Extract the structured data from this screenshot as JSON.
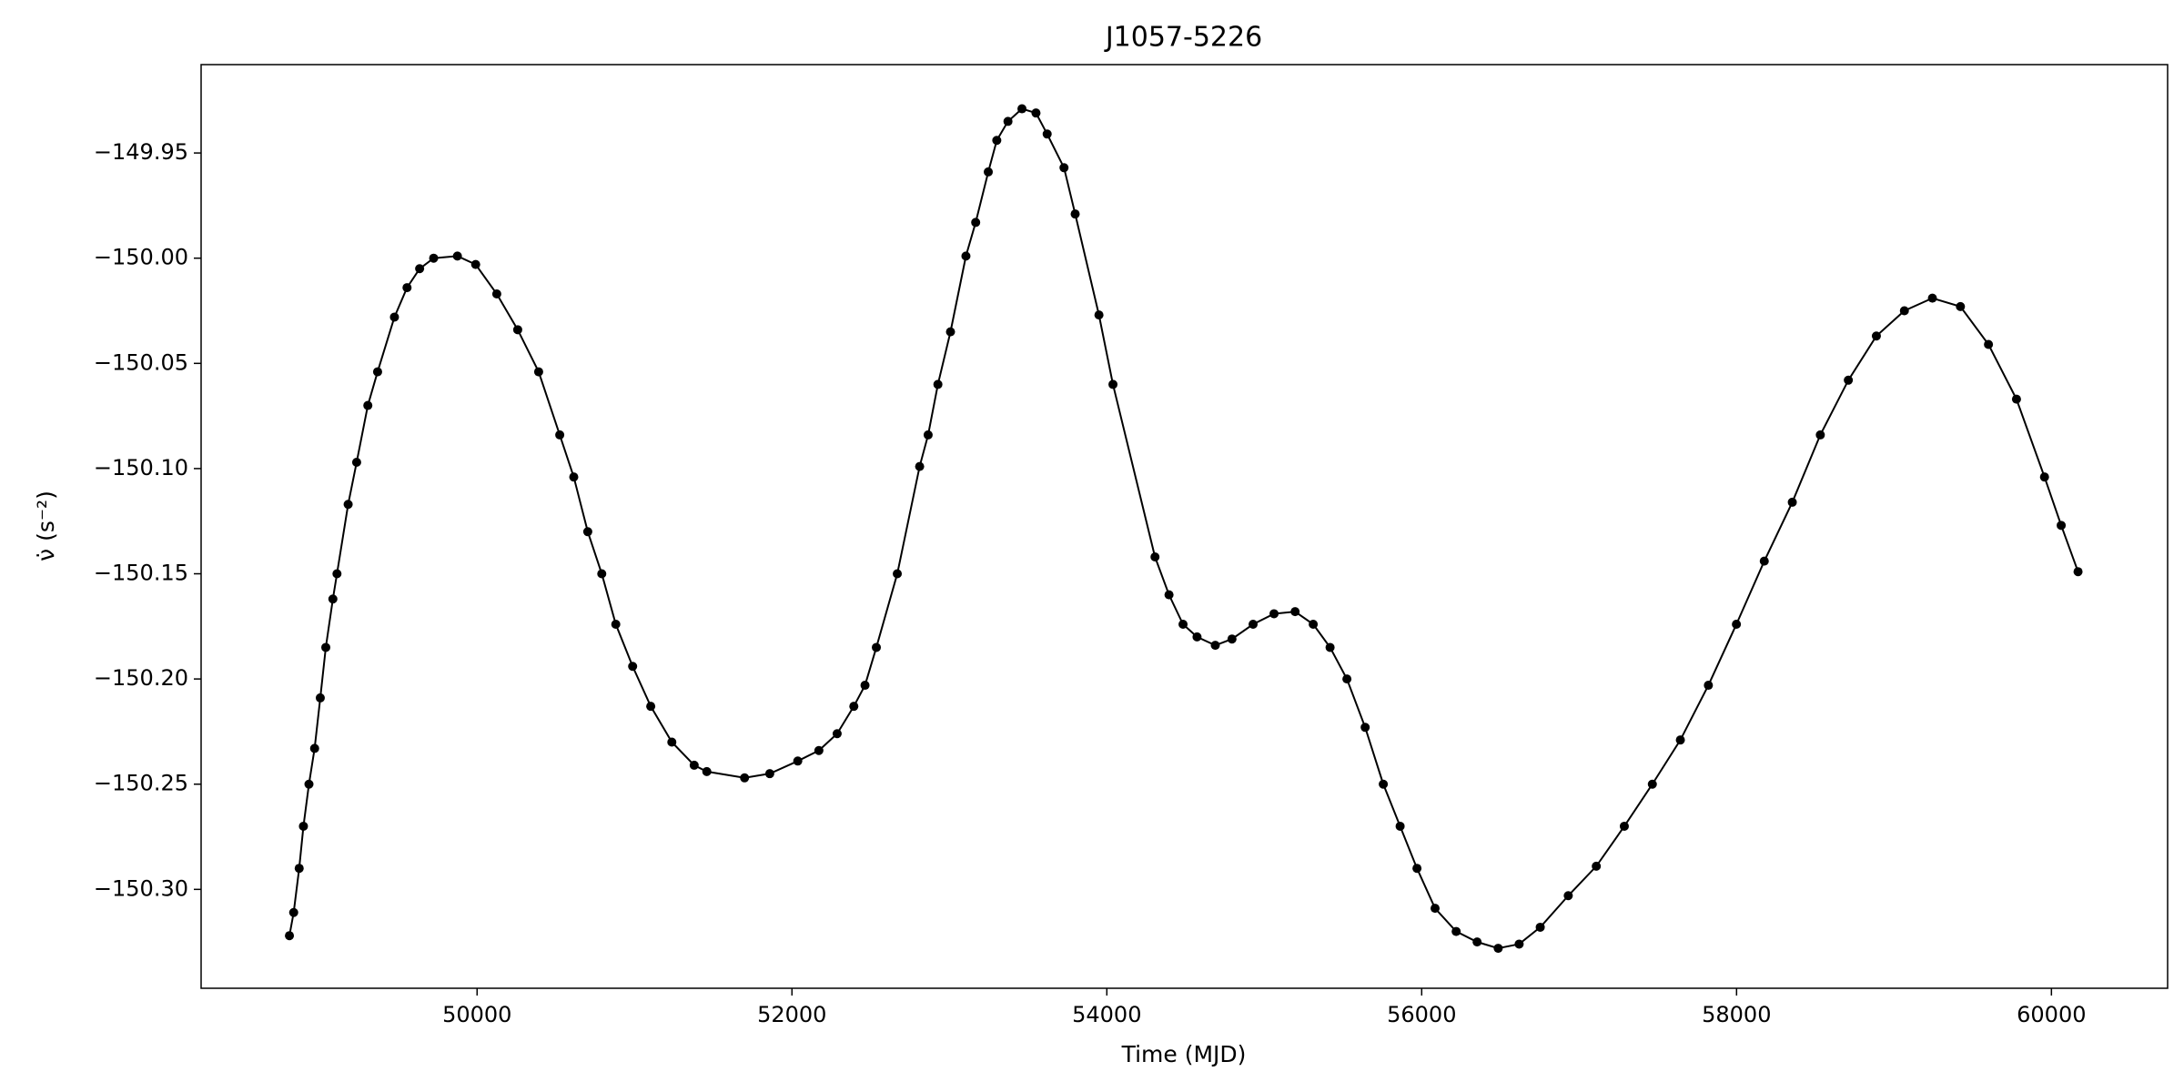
{
  "chart_data": {
    "type": "line",
    "title": "J1057-5226",
    "x_label": "Time (MJD)",
    "y_label": "ν̇ (s⁻²)",
    "color": "#000000",
    "x": [
      48808,
      48835,
      48870,
      48897,
      48932,
      48968,
      49004,
      49039,
      49084,
      49110,
      49181,
      49235,
      49306,
      49368,
      49475,
      49555,
      49635,
      49724,
      49875,
      49991,
      50125,
      50258,
      50391,
      50525,
      50614,
      50703,
      50792,
      50881,
      50988,
      51103,
      51237,
      51379,
      51459,
      51699,
      51859,
      52037,
      52171,
      52287,
      52393,
      52464,
      52536,
      52669,
      52811,
      52865,
      52927,
      53007,
      53105,
      53167,
      53247,
      53301,
      53372,
      53461,
      53550,
      53621,
      53728,
      53799,
      53950,
      54039,
      54306,
      54395,
      54484,
      54573,
      54689,
      54795,
      54929,
      55062,
      55196,
      55311,
      55418,
      55525,
      55641,
      55756,
      55863,
      55970,
      56085,
      56219,
      56352,
      56486,
      56619,
      56753,
      56931,
      57109,
      57287,
      57465,
      57643,
      57821,
      57999,
      58176,
      58354,
      58532,
      58710,
      58888,
      59066,
      59244,
      59422,
      59600,
      59778,
      59956,
      60062,
      60169
    ],
    "values": [
      -150.322,
      -150.311,
      -150.29,
      -150.27,
      -150.25,
      -150.233,
      -150.209,
      -150.185,
      -150.162,
      -150.15,
      -150.117,
      -150.097,
      -150.07,
      -150.054,
      -150.028,
      -150.014,
      -150.005,
      -150.0,
      -149.999,
      -150.003,
      -150.017,
      -150.034,
      -150.054,
      -150.084,
      -150.104,
      -150.13,
      -150.15,
      -150.174,
      -150.194,
      -150.213,
      -150.23,
      -150.241,
      -150.244,
      -150.247,
      -150.245,
      -150.239,
      -150.234,
      -150.226,
      -150.213,
      -150.203,
      -150.185,
      -150.15,
      -150.099,
      -150.084,
      -150.06,
      -150.035,
      -149.999,
      -149.983,
      -149.959,
      -149.944,
      -149.935,
      -149.929,
      -149.931,
      -149.941,
      -149.957,
      -149.979,
      -150.027,
      -150.06,
      -150.142,
      -150.16,
      -150.174,
      -150.18,
      -150.184,
      -150.181,
      -150.174,
      -150.169,
      -150.168,
      -150.174,
      -150.185,
      -150.2,
      -150.223,
      -150.25,
      -150.27,
      -150.29,
      -150.309,
      -150.32,
      -150.325,
      -150.328,
      -150.326,
      -150.318,
      -150.303,
      -150.289,
      -150.27,
      -150.25,
      -150.229,
      -150.203,
      -150.174,
      -150.144,
      -150.116,
      -150.084,
      -150.058,
      -150.037,
      -150.025,
      -150.019,
      -150.023,
      -150.041,
      -150.067,
      -150.104,
      -150.127,
      -150.149
    ],
    "xlim": [
      48247,
      60738
    ],
    "xticks": [
      50000,
      52000,
      54000,
      56000,
      58000,
      60000
    ],
    "ylim": [
      -150.347,
      -149.908
    ],
    "yticks": [
      {
        "value": -150.3,
        "label": "−150.30"
      },
      {
        "value": -150.25,
        "label": "−150.25"
      },
      {
        "value": -150.2,
        "label": "−150.20"
      },
      {
        "value": -150.15,
        "label": "−150.15"
      },
      {
        "value": -150.1,
        "label": "−150.10"
      },
      {
        "value": -150.05,
        "label": "−150.05"
      },
      {
        "value": -150.0,
        "label": "−150.00"
      },
      {
        "value": -149.95,
        "label": "−149.95"
      }
    ]
  }
}
